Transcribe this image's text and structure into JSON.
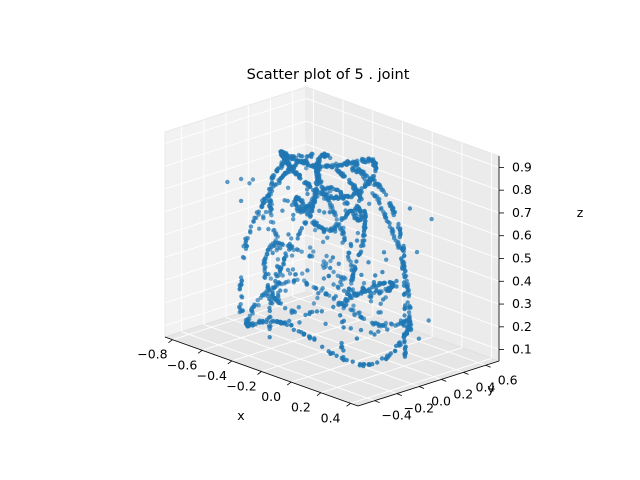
{
  "chart_data": {
    "type": "scatter",
    "projection": "3d",
    "title": "Scatter plot of 5 . joint",
    "xlabel": "x",
    "ylabel": "y",
    "zlabel": "z",
    "xlim": [
      -0.85,
      0.45
    ],
    "ylim": [
      -0.55,
      0.72
    ],
    "zlim": [
      0.05,
      0.95
    ],
    "xticks": [
      -0.8,
      -0.6,
      -0.4,
      -0.2,
      0.0,
      0.2,
      0.4
    ],
    "xtick_labels": [
      "−0.8",
      "−0.6",
      "−0.4",
      "−0.2",
      "0.0",
      "0.2",
      "0.4"
    ],
    "yticks": [
      -0.4,
      -0.2,
      0.0,
      0.2,
      0.4,
      0.6
    ],
    "ytick_labels": [
      "−0.4",
      "−0.2",
      "0.0",
      "0.2",
      "0.4",
      "0.6"
    ],
    "zticks": [
      0.1,
      0.2,
      0.3,
      0.4,
      0.5,
      0.6,
      0.7,
      0.8,
      0.9
    ],
    "ztick_labels": [
      "0.1",
      "0.2",
      "0.3",
      "0.4",
      "0.5",
      "0.6",
      "0.7",
      "0.8",
      "0.9"
    ],
    "grid": true,
    "marker_color": "#1f77b4",
    "point_count": 1300,
    "shape_description": "points trace several looping arcs forming a dome-like shell, densest near the top (z≈0.85) and around the rims"
  }
}
